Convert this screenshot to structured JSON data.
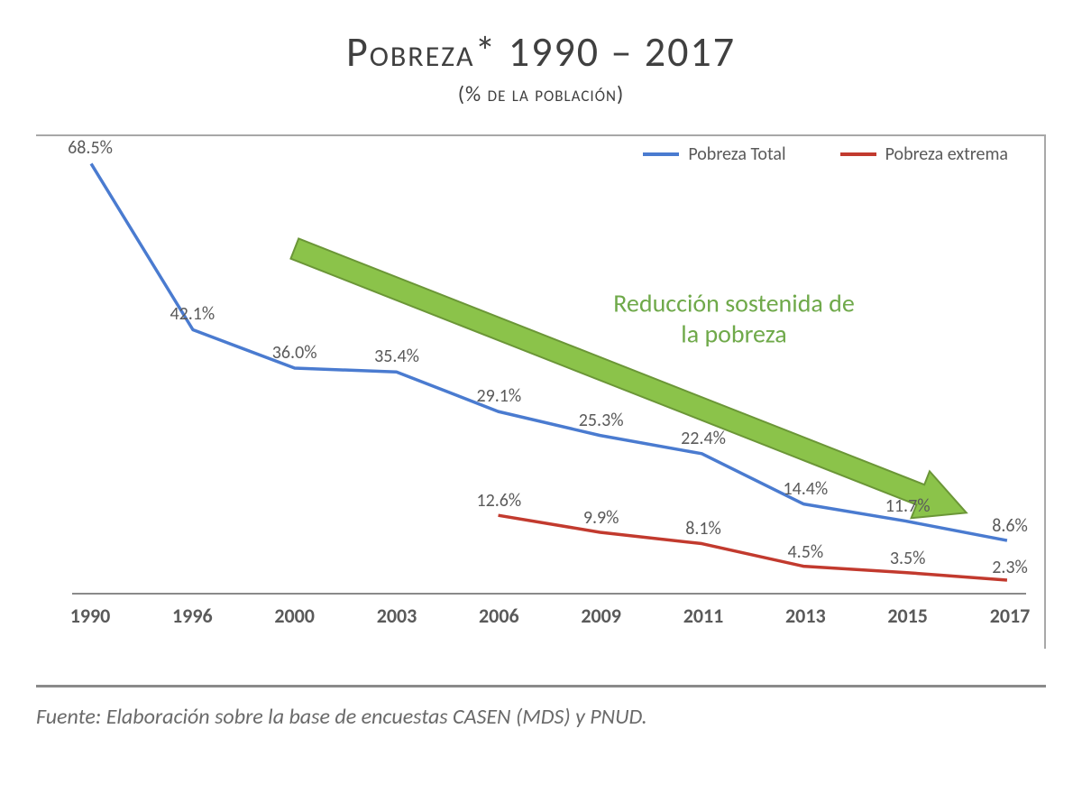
{
  "title": "Pobreza* 1990 – 2017",
  "subtitle": "(% de la población)",
  "annotation_text": "Reducción sostenida de\nla pobreza",
  "footer": "Fuente: Elaboración sobre la base de encuestas CASEN (MDS) y PNUD.",
  "chart": {
    "type": "line",
    "x_categories": [
      "1990",
      "1996",
      "2000",
      "2003",
      "2006",
      "2009",
      "2011",
      "2013",
      "2015",
      "2017"
    ],
    "y_range": [
      0,
      70
    ],
    "x_label_fontsize": 22,
    "x_label_fontweight": 700,
    "x_label_color": "#5a5a5a",
    "data_label_fontsize": 20,
    "data_label_color": "#5a5a5a",
    "axis_color": "#8a8a8a",
    "frame_border_color": "#a8a8a8",
    "background_color": "#ffffff",
    "line_width": 3.5,
    "series": [
      {
        "name": "Pobreza Total",
        "color": "#4a7bd0",
        "values": [
          68.5,
          42.1,
          36.0,
          35.4,
          29.1,
          25.3,
          22.4,
          14.4,
          11.7,
          8.6
        ],
        "labels": [
          "68.5%",
          "42.1%",
          "36.0%",
          "35.4%",
          "29.1%",
          "25.3%",
          "22.4%",
          "14.4%",
          "11.7%",
          "8.6%"
        ],
        "label_offsets_y": [
          -6,
          -6,
          -6,
          -6,
          -6,
          -6,
          -6,
          -6,
          -6,
          -6
        ]
      },
      {
        "name": "Pobreza extrema",
        "color": "#c23a2e",
        "start_index": 4,
        "values": [
          12.6,
          9.9,
          8.1,
          4.5,
          3.5,
          2.3
        ],
        "labels": [
          "12.6%",
          "9.9%",
          "8.1%",
          "4.5%",
          "3.5%",
          "2.3%"
        ],
        "label_offsets_y": [
          -6,
          -6,
          -6,
          -6,
          -6,
          -4
        ]
      }
    ],
    "legend": {
      "position": "top-right",
      "fontsize": 20,
      "text_color": "#5a5a5a",
      "swatch_width": 40,
      "line_width": 4
    },
    "arrow": {
      "color_fill": "#8bc34a",
      "color_stroke": "#6b9637",
      "start_x_index": 2.0,
      "start_y_value": 55,
      "end_x_index": 8.6,
      "end_y_value": 13,
      "shaft_half_width": 12,
      "head_length": 55,
      "head_half_width": 28
    },
    "annotation": {
      "fontsize": 28,
      "color": "#6fa94a",
      "x_index": 6.3,
      "y_value": 44
    }
  },
  "footer_style": {
    "fontsize": 24,
    "color": "#6a6a6a",
    "font_style": "italic",
    "border_color": "#8a8a8a"
  },
  "title_style": {
    "fontsize": 46,
    "color": "#404040",
    "font_variant": "small-caps"
  },
  "subtitle_style": {
    "fontsize": 24,
    "color": "#404040",
    "font_variant": "small-caps"
  }
}
